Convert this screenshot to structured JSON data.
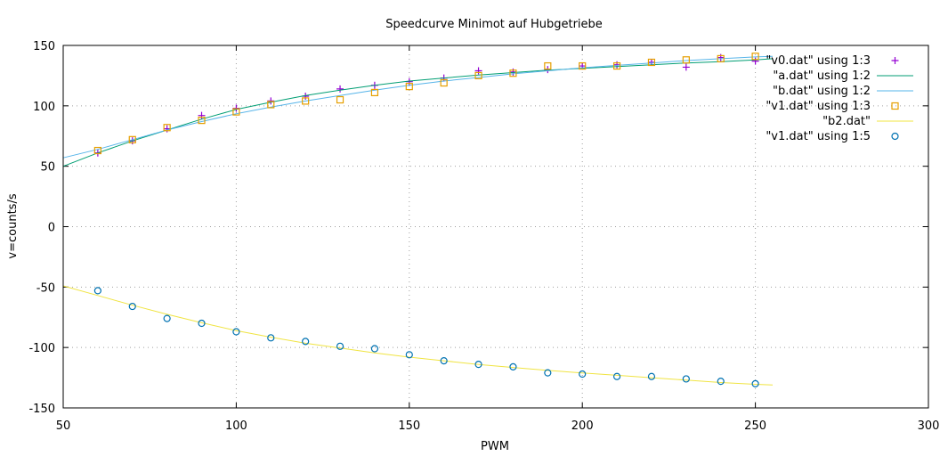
{
  "chart_data": {
    "type": "scatter",
    "title": "Speedcurve Minimot auf Hubgetriebe",
    "xlabel": "PWM",
    "ylabel": "v=counts/s",
    "xlim": [
      50,
      300
    ],
    "ylim": [
      -150,
      150
    ],
    "xticks": [
      50,
      100,
      150,
      200,
      250,
      300
    ],
    "yticks": [
      -150,
      -100,
      -50,
      0,
      50,
      100,
      150
    ],
    "grid": true,
    "legend_position": "top-right",
    "series": [
      {
        "name": "\"v0.dat\" using 1:3",
        "kind": "points",
        "marker": "plus",
        "color": "#9400d3",
        "x": [
          60,
          70,
          80,
          90,
          100,
          110,
          120,
          130,
          140,
          150,
          160,
          170,
          180,
          190,
          200,
          210,
          220,
          230,
          240,
          250
        ],
        "y": [
          61,
          71,
          81,
          92,
          98,
          104,
          108,
          114,
          117,
          120,
          123,
          129,
          128,
          130,
          133,
          134,
          136,
          132,
          140,
          137
        ]
      },
      {
        "name": "\"a.dat\" using 1:2",
        "kind": "line",
        "color": "#009e73",
        "x": [
          50,
          60,
          70,
          80,
          90,
          100,
          110,
          120,
          130,
          140,
          150,
          160,
          170,
          180,
          190,
          200,
          210,
          220,
          230,
          240,
          250,
          255
        ],
        "y": [
          50,
          61,
          71,
          80,
          89,
          97,
          103,
          108.5,
          113,
          117,
          120.5,
          123,
          125.5,
          127.5,
          129.5,
          131,
          132.5,
          134,
          135.5,
          136.5,
          138,
          139
        ]
      },
      {
        "name": "\"b.dat\" using 1:2",
        "kind": "line",
        "color": "#56b4e9",
        "x": [
          50,
          60,
          70,
          80,
          90,
          100,
          110,
          120,
          130,
          140,
          150,
          160,
          170,
          180,
          190,
          200,
          210,
          220,
          230,
          240,
          250,
          255
        ],
        "y": [
          57,
          64,
          72,
          80,
          87,
          93.5,
          99,
          104,
          108.5,
          113,
          117,
          120.5,
          123.5,
          126.5,
          129,
          131.5,
          133.5,
          135.5,
          137.5,
          139,
          140.5,
          141
        ]
      },
      {
        "name": "\"v1.dat\" using 1:3",
        "kind": "points",
        "marker": "square",
        "color": "#e69f00",
        "x": [
          60,
          70,
          80,
          90,
          100,
          110,
          120,
          130,
          140,
          150,
          160,
          170,
          180,
          190,
          200,
          210,
          220,
          230,
          240,
          250
        ],
        "y": [
          63,
          72,
          82,
          88,
          95,
          101,
          104,
          105,
          111,
          116,
          119,
          125,
          127,
          133,
          133,
          133,
          136,
          138,
          139,
          141
        ]
      },
      {
        "name": "\"b2.dat\"",
        "kind": "line",
        "color": "#f0e442",
        "x": [
          50,
          60,
          70,
          80,
          90,
          100,
          110,
          120,
          130,
          140,
          150,
          160,
          170,
          180,
          190,
          200,
          210,
          220,
          230,
          240,
          250,
          255
        ],
        "y": [
          -49,
          -57,
          -65,
          -72.5,
          -79.5,
          -86,
          -91.5,
          -96.5,
          -100.5,
          -104.5,
          -108,
          -111,
          -114,
          -116.5,
          -119,
          -121,
          -123,
          -125,
          -127,
          -129,
          -130.5,
          -131
        ]
      },
      {
        "name": "\"v1.dat\" using 1:5",
        "kind": "points",
        "marker": "circle",
        "color": "#0072b2",
        "x": [
          60,
          70,
          80,
          90,
          100,
          110,
          120,
          130,
          140,
          150,
          160,
          170,
          180,
          190,
          200,
          210,
          220,
          230,
          240,
          250
        ],
        "y": [
          -53,
          -66,
          -76,
          -80,
          -87,
          -92,
          -95,
          -99,
          -101,
          -106,
          -111,
          -114,
          -116,
          -121,
          -122,
          -124,
          -124,
          -126,
          -128,
          -130
        ]
      }
    ]
  }
}
